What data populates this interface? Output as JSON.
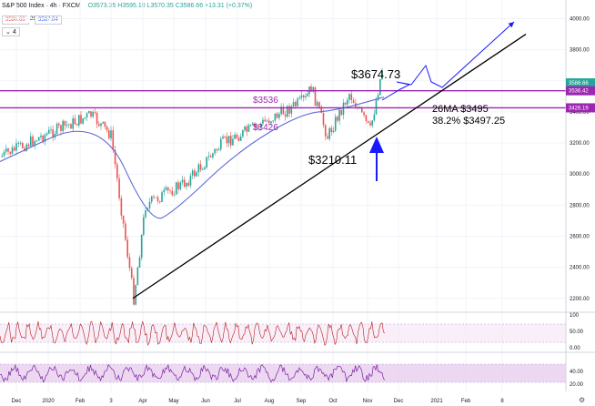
{
  "header": {
    "title": "S&P 500 Index · 4h · FXCM",
    "ohlc": "O3573.35  H3595.10  L3570.35  C3586.66  +13.31 (+0.37%)",
    "price_left": "3586.66",
    "spread": "28",
    "price_right": "3587.04",
    "collapse_label": "4"
  },
  "annotations": {
    "resist1": "$3536",
    "resist2": "$3426",
    "high": "$3674.73",
    "low": "$3210.11",
    "ma_label": "26MA $3495",
    "fib_label": "38.2% $3497.25"
  },
  "price_badges": {
    "last": "3586.66",
    "r1": "3536.42",
    "r2": "3426.19"
  },
  "colors": {
    "up": "#26a69a",
    "down": "#ef5350",
    "ma": "#5b6bd6",
    "resistance": "#9c27b0",
    "arrow": "#1a1aff",
    "trend": "#000000"
  },
  "chart_data": {
    "type": "candlestick",
    "title": "S&P 500 Index · 4h · FXCM",
    "x": [
      "Dec",
      "2020",
      "Feb",
      "3",
      "Apr",
      "May",
      "Jun",
      "Jul",
      "Aug",
      "Sep",
      "Oct",
      "Nov",
      "Dec",
      "2021",
      "Feb",
      "8"
    ],
    "price_ticks": [
      4000,
      3800,
      3600,
      3400,
      3200,
      3000,
      2800,
      2600,
      2400,
      2200
    ],
    "ylim": [
      2140,
      4120
    ],
    "key_points": [
      {
        "month": "Dec",
        "price": 3110
      },
      {
        "month": "2020",
        "price": 3240
      },
      {
        "month": "Feb",
        "price": 3380
      },
      {
        "month": "3",
        "price": 3250
      },
      {
        "month": "3",
        "price": 2200
      },
      {
        "month": "Apr",
        "price": 2800
      },
      {
        "month": "May",
        "price": 2950
      },
      {
        "month": "Jun",
        "price": 3200
      },
      {
        "month": "Jul",
        "price": 3300
      },
      {
        "month": "Aug",
        "price": 3480
      },
      {
        "month": "Sep",
        "price": 3560
      },
      {
        "month": "Sep",
        "price": 3240
      },
      {
        "month": "Oct",
        "price": 3520
      },
      {
        "month": "Nov",
        "price": 3280
      },
      {
        "month": "Nov",
        "price": 3674.73
      }
    ],
    "ma": [
      {
        "month": "Dec",
        "price": 3080
      },
      {
        "month": "Feb",
        "price": 3380
      },
      {
        "month": "Apr",
        "price": 2680
      },
      {
        "month": "May",
        "price": 2760
      },
      {
        "month": "Jul",
        "price": 3150
      },
      {
        "month": "Sep",
        "price": 3390
      },
      {
        "month": "Oct",
        "price": 3410
      },
      {
        "month": "Nov",
        "price": 3495
      }
    ],
    "horizontal_levels": [
      3536,
      3426
    ],
    "trendline": {
      "from": {
        "month": "3",
        "price": 2200
      },
      "to": {
        "month": "8",
        "price": 3900
      }
    },
    "osc1_ticks": [
      100,
      50.0,
      0.0
    ],
    "osc2_ticks": [
      40.0,
      20.0
    ]
  }
}
